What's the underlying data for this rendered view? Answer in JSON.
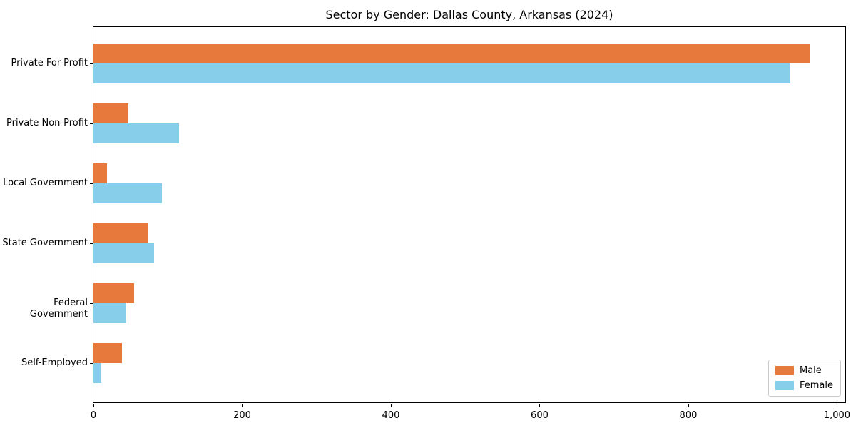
{
  "title": "Sector by Gender: Dallas County, Arkansas (2024)",
  "chart_data": {
    "type": "bar",
    "orientation": "horizontal",
    "title": "Sector by Gender: Dallas County, Arkansas (2024)",
    "categories": [
      "Private For-Profit",
      "Private Non-Profit",
      "Local Government",
      "State Government",
      "Federal Government",
      "Self-Employed"
    ],
    "series": [
      {
        "name": "Male",
        "color": "#E8793D",
        "values": [
          964,
          47,
          18,
          74,
          55,
          38
        ]
      },
      {
        "name": "Female",
        "color": "#87CEEB",
        "values": [
          937,
          115,
          92,
          82,
          44,
          11
        ]
      }
    ],
    "xlabel": "",
    "ylabel": "",
    "xlim": [
      0,
      1013
    ],
    "xticks": [
      0,
      200,
      400,
      600,
      800,
      1000
    ],
    "xtick_labels": [
      "0",
      "200",
      "400",
      "600",
      "800",
      "1,000"
    ],
    "grid": false,
    "legend_position": "lower right",
    "axis_color": "#000000",
    "background_color": "#ffffff"
  }
}
